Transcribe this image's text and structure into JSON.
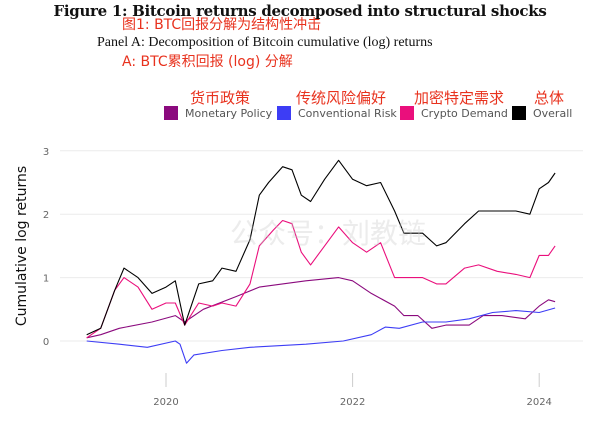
{
  "header": {
    "title": "Figure 1: Bitcoin returns decomposed into structural shocks",
    "title_cn": "图1: BTC回报分解为结构性冲击",
    "subtitle": "Panel A: Decomposition of Bitcoin cumulative (log) returns",
    "subtitle_cn": "A: BTC累积回报 (log) 分解"
  },
  "legend": [
    {
      "label": "Monetary Policy",
      "label_cn": "货币政策",
      "color": "#8b0a7e"
    },
    {
      "label": "Conventional Risk",
      "label_cn": "传统风险偏好",
      "color": "#3d3df5"
    },
    {
      "label": "Crypto Demand",
      "label_cn": "加密特定需求",
      "color": "#ea0f7c"
    },
    {
      "label": "Overall",
      "label_cn": "总体",
      "color": "#000000"
    }
  ],
  "watermark": "公众号：刘教链",
  "chart_data": {
    "type": "line",
    "title": "",
    "xlabel": "",
    "ylabel": "Cumulative log returns",
    "xlim": [
      2018.9,
      2024.6
    ],
    "ylim": [
      -0.8,
      3.1
    ],
    "xticks": [
      {
        "value": 2020,
        "label": "2020"
      },
      {
        "value": 2022,
        "label": "2022"
      },
      {
        "value": 2024,
        "label": "2024"
      }
    ],
    "yticks": [
      {
        "value": 0,
        "label": "0"
      },
      {
        "value": 1,
        "label": "1"
      },
      {
        "value": 2,
        "label": "2"
      },
      {
        "value": 3,
        "label": "3"
      }
    ],
    "grid": "horizontal",
    "legend_position": "top-right",
    "series": [
      {
        "name": "Monetary Policy",
        "color": "#8b0a7e",
        "x": [
          2019.15,
          2019.3,
          2019.5,
          2019.85,
          2020.1,
          2020.2,
          2020.4,
          2020.75,
          2021.0,
          2021.25,
          2021.5,
          2021.85,
          2022.0,
          2022.2,
          2022.45,
          2022.55,
          2022.7,
          2022.85,
          2023.0,
          2023.25,
          2023.4,
          2023.6,
          2023.85,
          2024.0,
          2024.1,
          2024.17
        ],
        "y": [
          0.05,
          0.1,
          0.2,
          0.3,
          0.4,
          0.3,
          0.5,
          0.7,
          0.85,
          0.9,
          0.95,
          1.0,
          0.95,
          0.75,
          0.55,
          0.4,
          0.4,
          0.2,
          0.25,
          0.25,
          0.4,
          0.4,
          0.35,
          0.55,
          0.65,
          0.62
        ]
      },
      {
        "name": "Conventional Risk",
        "color": "#3d3df5",
        "x": [
          2019.15,
          2019.5,
          2019.8,
          2020.1,
          2020.15,
          2020.22,
          2020.3,
          2020.6,
          2020.9,
          2021.5,
          2021.9,
          2022.2,
          2022.35,
          2022.5,
          2022.75,
          2023.0,
          2023.25,
          2023.5,
          2023.75,
          2024.0,
          2024.17
        ],
        "y": [
          0.0,
          -0.05,
          -0.1,
          0.0,
          -0.05,
          -0.35,
          -0.22,
          -0.15,
          -0.1,
          -0.05,
          0.0,
          0.1,
          0.22,
          0.2,
          0.3,
          0.3,
          0.35,
          0.45,
          0.48,
          0.45,
          0.52
        ]
      },
      {
        "name": "Crypto Demand",
        "color": "#ea0f7c",
        "x": [
          2019.15,
          2019.3,
          2019.45,
          2019.55,
          2019.7,
          2019.85,
          2020.0,
          2020.1,
          2020.2,
          2020.35,
          2020.5,
          2020.6,
          2020.75,
          2020.9,
          2021.0,
          2021.15,
          2021.25,
          2021.35,
          2021.45,
          2021.55,
          2021.7,
          2021.85,
          2022.0,
          2022.15,
          2022.3,
          2022.45,
          2022.6,
          2022.75,
          2022.9,
          2023.0,
          2023.2,
          2023.35,
          2023.55,
          2023.75,
          2023.9,
          2024.0,
          2024.1,
          2024.17
        ],
        "y": [
          0.05,
          0.2,
          0.8,
          1.0,
          0.85,
          0.5,
          0.6,
          0.6,
          0.25,
          0.6,
          0.55,
          0.6,
          0.55,
          0.9,
          1.5,
          1.75,
          1.9,
          1.85,
          1.4,
          1.2,
          1.5,
          1.8,
          1.55,
          1.4,
          1.55,
          1.0,
          1.0,
          1.0,
          0.9,
          0.9,
          1.15,
          1.2,
          1.1,
          1.05,
          1.0,
          1.35,
          1.35,
          1.5
        ]
      },
      {
        "name": "Overall",
        "color": "#000000",
        "x": [
          2019.15,
          2019.3,
          2019.45,
          2019.55,
          2019.7,
          2019.85,
          2020.0,
          2020.1,
          2020.2,
          2020.35,
          2020.5,
          2020.6,
          2020.75,
          2020.9,
          2021.0,
          2021.1,
          2021.25,
          2021.35,
          2021.45,
          2021.55,
          2021.7,
          2021.85,
          2022.0,
          2022.15,
          2022.3,
          2022.45,
          2022.55,
          2022.75,
          2022.9,
          2023.0,
          2023.2,
          2023.35,
          2023.55,
          2023.75,
          2023.9,
          2024.0,
          2024.1,
          2024.17
        ],
        "y": [
          0.1,
          0.2,
          0.8,
          1.15,
          1.0,
          0.75,
          0.85,
          0.95,
          0.25,
          0.9,
          0.95,
          1.15,
          1.1,
          1.6,
          2.3,
          2.5,
          2.75,
          2.7,
          2.3,
          2.2,
          2.55,
          2.85,
          2.55,
          2.45,
          2.5,
          2.05,
          1.7,
          1.7,
          1.5,
          1.55,
          1.85,
          2.05,
          2.05,
          2.05,
          2.0,
          2.4,
          2.5,
          2.65
        ]
      }
    ]
  }
}
